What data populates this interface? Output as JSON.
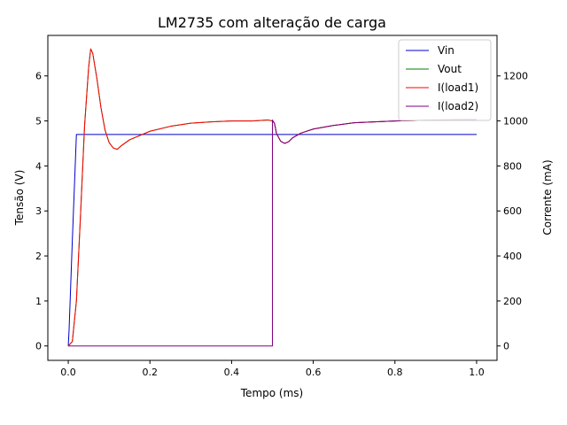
{
  "chart_data": {
    "type": "line",
    "title": "LM2735 com alteração de carga",
    "xlabel": "Tempo (ms)",
    "ylabel": "Tensão (V)",
    "ylabel_right": "Corrente (mA)",
    "xlim": [
      -0.05,
      1.05
    ],
    "ylim": [
      -0.32,
      6.9
    ],
    "ylim_right": [
      -64,
      1380
    ],
    "x_ticks": [
      "0.0",
      "0.2",
      "0.4",
      "0.6",
      "0.8",
      "1.0"
    ],
    "y_ticks": [
      "0",
      "1",
      "2",
      "3",
      "4",
      "5",
      "6"
    ],
    "y_ticks_right": [
      "0",
      "200",
      "400",
      "600",
      "800",
      "1000",
      "1200"
    ],
    "legend_position": "top-right",
    "series": [
      {
        "name": "Vin",
        "axis": "left",
        "color": "#0000cc",
        "x": [
          0.0,
          0.002,
          0.01,
          0.02,
          0.05,
          0.1,
          0.2,
          0.3,
          0.4,
          0.5,
          0.6,
          0.7,
          0.8,
          0.9,
          1.0
        ],
        "y": [
          0.0,
          0.35,
          2.35,
          4.7,
          4.7,
          4.7,
          4.7,
          4.7,
          4.7,
          4.7,
          4.7,
          4.7,
          4.7,
          4.7,
          4.7
        ]
      },
      {
        "name": "Vout",
        "axis": "left",
        "color": "#008000",
        "x": [
          0.0,
          0.01,
          0.02,
          0.03,
          0.04,
          0.05,
          0.055,
          0.06,
          0.07,
          0.08,
          0.09,
          0.1,
          0.11,
          0.12,
          0.13,
          0.15,
          0.2,
          0.25,
          0.3,
          0.35,
          0.4,
          0.45,
          0.49,
          0.5,
          0.505,
          0.51,
          0.52,
          0.53,
          0.54,
          0.55,
          0.57,
          0.6,
          0.65,
          0.7,
          0.75,
          0.8,
          0.9,
          1.0
        ],
        "y": [
          0.0,
          0.1,
          1.0,
          2.9,
          4.9,
          6.2,
          6.6,
          6.5,
          5.95,
          5.3,
          4.8,
          4.52,
          4.4,
          4.37,
          4.45,
          4.58,
          4.77,
          4.88,
          4.95,
          4.98,
          5.0,
          5.0,
          5.02,
          5.0,
          4.95,
          4.72,
          4.55,
          4.5,
          4.54,
          4.63,
          4.73,
          4.82,
          4.9,
          4.96,
          4.98,
          5.0,
          5.02,
          5.03
        ]
      },
      {
        "name": "I(load1)",
        "axis": "left",
        "color": "#ff0000",
        "x": [
          0.0,
          0.01,
          0.02,
          0.03,
          0.04,
          0.05,
          0.055,
          0.06,
          0.07,
          0.08,
          0.09,
          0.1,
          0.11,
          0.12,
          0.13,
          0.15,
          0.2,
          0.25,
          0.3,
          0.35,
          0.4,
          0.45,
          0.49,
          0.5,
          0.505,
          0.51,
          0.52,
          0.53,
          0.54,
          0.55,
          0.57,
          0.6,
          0.65,
          0.7,
          0.75,
          0.8,
          0.9,
          1.0
        ],
        "y": [
          0.0,
          0.1,
          1.0,
          2.9,
          4.9,
          6.2,
          6.6,
          6.5,
          5.95,
          5.3,
          4.8,
          4.52,
          4.4,
          4.37,
          4.45,
          4.58,
          4.77,
          4.88,
          4.95,
          4.98,
          5.0,
          5.0,
          5.02,
          5.0,
          4.95,
          4.72,
          4.55,
          4.5,
          4.54,
          4.63,
          4.73,
          4.82,
          4.9,
          4.96,
          4.98,
          5.0,
          5.02,
          5.03
        ]
      },
      {
        "name": "I(load2)",
        "axis": "right",
        "color": "#800080",
        "x": [
          0.0,
          0.5,
          0.5,
          0.505,
          0.51,
          0.52,
          0.53,
          0.54,
          0.55,
          0.57,
          0.6,
          0.65,
          0.7,
          0.75,
          0.8,
          0.9,
          1.0
        ],
        "y": [
          0,
          0,
          1004,
          990,
          944,
          910,
          900,
          908,
          926,
          946,
          964,
          980,
          992,
          996,
          1000,
          1004,
          1006
        ]
      }
    ]
  }
}
